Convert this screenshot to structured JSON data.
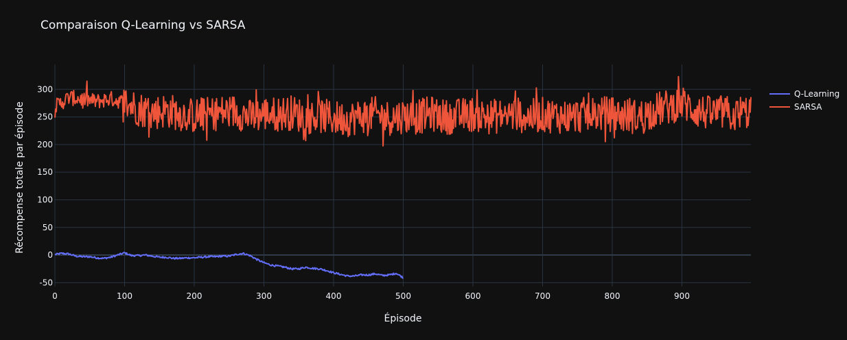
{
  "chart_data": {
    "type": "line",
    "title": "Comparaison Q-Learning vs SARSA",
    "xlabel": "Épisode",
    "ylabel": "Récompense totale par épisode",
    "xlim": [
      0,
      999
    ],
    "ylim": [
      -57,
      345
    ],
    "x_ticks": [
      0,
      100,
      200,
      300,
      400,
      500,
      600,
      700,
      800,
      900
    ],
    "y_ticks": [
      -50,
      0,
      50,
      100,
      150,
      200,
      250,
      300
    ],
    "grid": true,
    "legend_position": "top-right",
    "series": [
      {
        "name": "Q-Learning",
        "color": "#636efa",
        "x": [
          0,
          10,
          20,
          30,
          40,
          50,
          60,
          70,
          80,
          90,
          100,
          110,
          120,
          130,
          140,
          150,
          160,
          170,
          180,
          190,
          200,
          210,
          220,
          230,
          240,
          250,
          260,
          270,
          280,
          290,
          300,
          310,
          320,
          330,
          340,
          350,
          360,
          370,
          380,
          390,
          400,
          410,
          420,
          430,
          440,
          450,
          460,
          470,
          480,
          490,
          500
        ],
        "values": [
          1,
          3,
          2,
          -2,
          -3,
          -3,
          -5,
          -6,
          -4,
          0,
          4,
          -1,
          -1,
          0,
          -2,
          -4,
          -4,
          -6,
          -6,
          -5,
          -5,
          -4,
          -3,
          -3,
          -2,
          -2,
          1,
          3,
          -1,
          -8,
          -14,
          -18,
          -20,
          -22,
          -25,
          -25,
          -22,
          -24,
          -25,
          -28,
          -32,
          -35,
          -38,
          -38,
          -36,
          -36,
          -34,
          -37,
          -36,
          -33,
          -41
        ]
      },
      {
        "name": "SARSA",
        "color": "#ef553b",
        "noisy": true,
        "x": [
          0,
          20,
          40,
          60,
          80,
          100,
          120,
          140,
          160,
          180,
          200,
          220,
          240,
          260,
          280,
          300,
          320,
          340,
          360,
          380,
          400,
          420,
          440,
          460,
          480,
          500,
          520,
          540,
          560,
          580,
          600,
          620,
          640,
          660,
          680,
          700,
          720,
          740,
          760,
          780,
          800,
          820,
          840,
          860,
          880,
          900,
          920,
          940,
          960,
          980,
          999
        ],
        "values": [
          268,
          285,
          282,
          278,
          283,
          276,
          265,
          258,
          262,
          256,
          252,
          255,
          258,
          260,
          250,
          256,
          255,
          258,
          250,
          252,
          248,
          246,
          252,
          255,
          248,
          252,
          250,
          256,
          250,
          252,
          255,
          250,
          252,
          255,
          250,
          254,
          252,
          250,
          254,
          256,
          255,
          252,
          250,
          262,
          268,
          275,
          262,
          256,
          258,
          252,
          262
        ],
        "min_shown": 182,
        "max_shown": 323
      }
    ]
  }
}
